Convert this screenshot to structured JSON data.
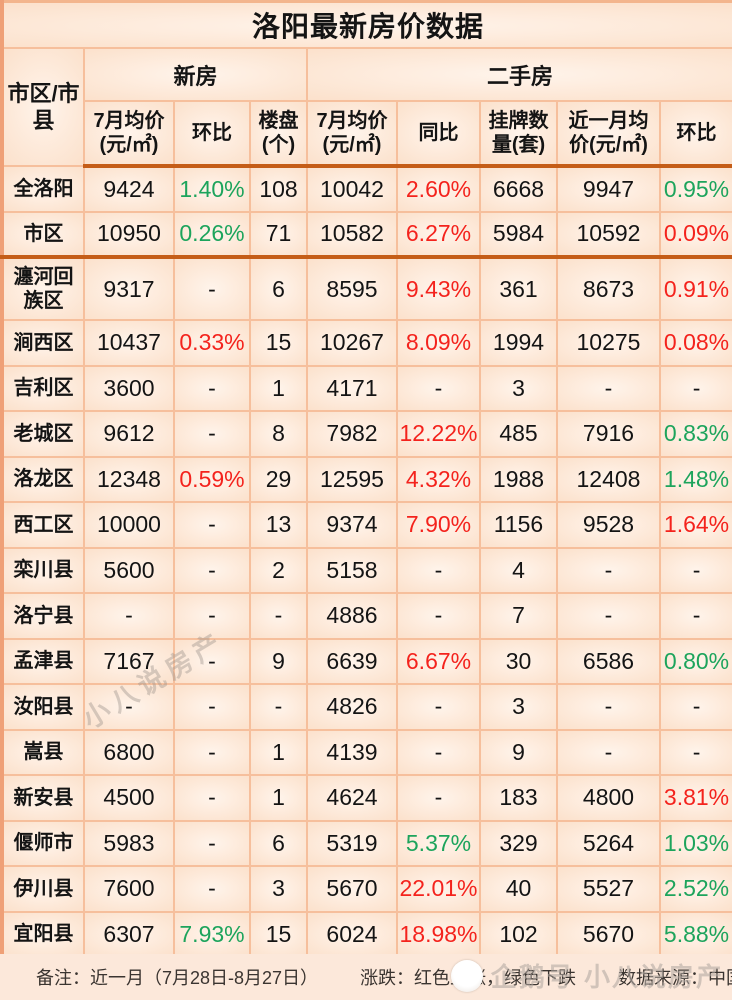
{
  "title": "洛阳最新房价数据",
  "header": {
    "row_label": "市区/市\n县",
    "groups": [
      {
        "label": "新房",
        "span": 3
      },
      {
        "label": "二手房",
        "span": 5
      }
    ],
    "columns": [
      "7月均价\n(元/㎡)",
      "环比",
      "楼盘\n(个)",
      "7月均价\n(元/㎡)",
      "同比",
      "挂牌数\n量(套)",
      "近一月均\n价(元/㎡)",
      "环比"
    ]
  },
  "chart_data": {
    "type": "table",
    "title": "洛阳最新房价数据",
    "columns": [
      "市区/市县",
      "新房 7月均价(元/㎡)",
      "新房 环比",
      "新房 楼盘(个)",
      "二手房 7月均价(元/㎡)",
      "二手房 同比",
      "二手房 挂牌数量(套)",
      "二手房 近一月均价(元/㎡)",
      "二手房 环比"
    ],
    "color_legend": {
      "red": "上涨",
      "green": "下跌"
    },
    "rows": [
      {
        "name": "全洛阳",
        "tall": false,
        "thick": false,
        "cells": [
          {
            "v": "9424"
          },
          {
            "v": "1.40%",
            "c": "green"
          },
          {
            "v": "108"
          },
          {
            "v": "10042"
          },
          {
            "v": "2.60%",
            "c": "red"
          },
          {
            "v": "6668"
          },
          {
            "v": "9947"
          },
          {
            "v": "0.95%",
            "c": "green"
          }
        ]
      },
      {
        "name": "市区",
        "tall": false,
        "thick": true,
        "cells": [
          {
            "v": "10950"
          },
          {
            "v": "0.26%",
            "c": "green"
          },
          {
            "v": "71"
          },
          {
            "v": "10582"
          },
          {
            "v": "6.27%",
            "c": "red"
          },
          {
            "v": "5984"
          },
          {
            "v": "10592"
          },
          {
            "v": "0.09%",
            "c": "red"
          }
        ]
      },
      {
        "name": "瀍河回族区",
        "tall": true,
        "thick": false,
        "cells": [
          {
            "v": "9317"
          },
          {
            "v": "-"
          },
          {
            "v": "6"
          },
          {
            "v": "8595"
          },
          {
            "v": "9.43%",
            "c": "red"
          },
          {
            "v": "361"
          },
          {
            "v": "8673"
          },
          {
            "v": "0.91%",
            "c": "red"
          }
        ]
      },
      {
        "name": "涧西区",
        "tall": false,
        "thick": false,
        "cells": [
          {
            "v": "10437"
          },
          {
            "v": "0.33%",
            "c": "red"
          },
          {
            "v": "15"
          },
          {
            "v": "10267"
          },
          {
            "v": "8.09%",
            "c": "red"
          },
          {
            "v": "1994"
          },
          {
            "v": "10275"
          },
          {
            "v": "0.08%",
            "c": "red"
          }
        ]
      },
      {
        "name": "吉利区",
        "tall": false,
        "thick": false,
        "cells": [
          {
            "v": "3600"
          },
          {
            "v": "-"
          },
          {
            "v": "1"
          },
          {
            "v": "4171"
          },
          {
            "v": "-"
          },
          {
            "v": "3"
          },
          {
            "v": "-"
          },
          {
            "v": "-"
          }
        ]
      },
      {
        "name": "老城区",
        "tall": false,
        "thick": false,
        "cells": [
          {
            "v": "9612"
          },
          {
            "v": "-"
          },
          {
            "v": "8"
          },
          {
            "v": "7982"
          },
          {
            "v": "12.22%",
            "c": "red"
          },
          {
            "v": "485"
          },
          {
            "v": "7916"
          },
          {
            "v": "0.83%",
            "c": "green"
          }
        ]
      },
      {
        "name": "洛龙区",
        "tall": false,
        "thick": false,
        "cells": [
          {
            "v": "12348"
          },
          {
            "v": "0.59%",
            "c": "red"
          },
          {
            "v": "29"
          },
          {
            "v": "12595"
          },
          {
            "v": "4.32%",
            "c": "red"
          },
          {
            "v": "1988"
          },
          {
            "v": "12408"
          },
          {
            "v": "1.48%",
            "c": "green"
          }
        ]
      },
      {
        "name": "西工区",
        "tall": false,
        "thick": false,
        "cells": [
          {
            "v": "10000"
          },
          {
            "v": "-"
          },
          {
            "v": "13"
          },
          {
            "v": "9374"
          },
          {
            "v": "7.90%",
            "c": "red"
          },
          {
            "v": "1156"
          },
          {
            "v": "9528"
          },
          {
            "v": "1.64%",
            "c": "red"
          }
        ]
      },
      {
        "name": "栾川县",
        "tall": false,
        "thick": false,
        "cells": [
          {
            "v": "5600"
          },
          {
            "v": "-"
          },
          {
            "v": "2"
          },
          {
            "v": "5158"
          },
          {
            "v": "-"
          },
          {
            "v": "4"
          },
          {
            "v": "-"
          },
          {
            "v": "-"
          }
        ]
      },
      {
        "name": "洛宁县",
        "tall": false,
        "thick": false,
        "cells": [
          {
            "v": "-"
          },
          {
            "v": "-"
          },
          {
            "v": "-"
          },
          {
            "v": "4886"
          },
          {
            "v": "-"
          },
          {
            "v": "7"
          },
          {
            "v": "-"
          },
          {
            "v": "-"
          }
        ]
      },
      {
        "name": "孟津县",
        "tall": false,
        "thick": false,
        "cells": [
          {
            "v": "7167"
          },
          {
            "v": "-"
          },
          {
            "v": "9"
          },
          {
            "v": "6639"
          },
          {
            "v": "6.67%",
            "c": "red"
          },
          {
            "v": "30"
          },
          {
            "v": "6586"
          },
          {
            "v": "0.80%",
            "c": "green"
          }
        ]
      },
      {
        "name": "汝阳县",
        "tall": false,
        "thick": false,
        "cells": [
          {
            "v": "-"
          },
          {
            "v": "-"
          },
          {
            "v": "-"
          },
          {
            "v": "4826"
          },
          {
            "v": "-"
          },
          {
            "v": "3"
          },
          {
            "v": "-"
          },
          {
            "v": "-"
          }
        ]
      },
      {
        "name": "嵩县",
        "tall": false,
        "thick": false,
        "cells": [
          {
            "v": "6800"
          },
          {
            "v": "-"
          },
          {
            "v": "1"
          },
          {
            "v": "4139"
          },
          {
            "v": "-"
          },
          {
            "v": "9"
          },
          {
            "v": "-"
          },
          {
            "v": "-"
          }
        ]
      },
      {
        "name": "新安县",
        "tall": false,
        "thick": false,
        "cells": [
          {
            "v": "4500"
          },
          {
            "v": "-"
          },
          {
            "v": "1"
          },
          {
            "v": "4624"
          },
          {
            "v": "-"
          },
          {
            "v": "183"
          },
          {
            "v": "4800"
          },
          {
            "v": "3.81%",
            "c": "red"
          }
        ]
      },
      {
        "name": "偃师市",
        "tall": false,
        "thick": false,
        "cells": [
          {
            "v": "5983"
          },
          {
            "v": "-"
          },
          {
            "v": "6"
          },
          {
            "v": "5319"
          },
          {
            "v": "5.37%",
            "c": "green"
          },
          {
            "v": "329"
          },
          {
            "v": "5264"
          },
          {
            "v": "1.03%",
            "c": "green"
          }
        ]
      },
      {
        "name": "伊川县",
        "tall": false,
        "thick": false,
        "cells": [
          {
            "v": "7600"
          },
          {
            "v": "-"
          },
          {
            "v": "3"
          },
          {
            "v": "5670"
          },
          {
            "v": "22.01%",
            "c": "red"
          },
          {
            "v": "40"
          },
          {
            "v": "5527"
          },
          {
            "v": "2.52%",
            "c": "green"
          }
        ]
      },
      {
        "name": "宜阳县",
        "tall": false,
        "thick": false,
        "cells": [
          {
            "v": "6307"
          },
          {
            "v": "7.93%",
            "c": "green"
          },
          {
            "v": "15"
          },
          {
            "v": "6024"
          },
          {
            "v": "18.98%",
            "c": "red"
          },
          {
            "v": "102"
          },
          {
            "v": "5670"
          },
          {
            "v": "5.88%",
            "c": "green"
          }
        ]
      }
    ]
  },
  "footer": {
    "note": "备注：近一月（7月28日-8月27日）",
    "legend": "涨跌：红色上涨，绿色下跌",
    "source": "数据来源：中国房价行情"
  },
  "watermarks": {
    "diagonal": "小八说房产",
    "bottom": "企鹅号 小八说房产"
  },
  "colors": {
    "rise_red": "#f4231d",
    "fall_green": "#1da45c",
    "thick_rule": "#c55d17",
    "cell_border": "#f6bf9c",
    "background": "#fbdfca"
  }
}
